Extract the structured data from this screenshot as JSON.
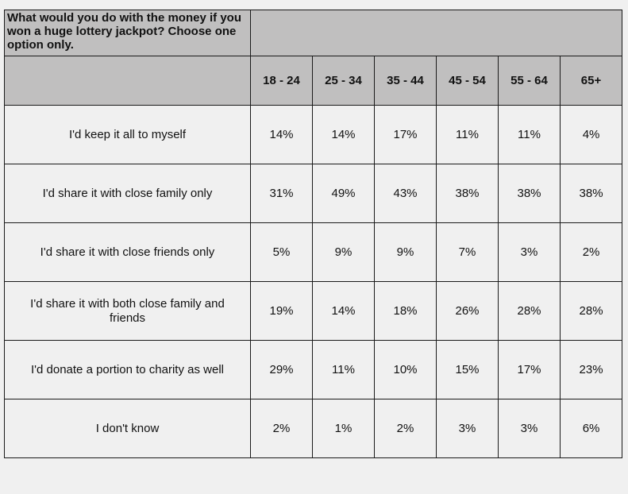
{
  "question": "What would you do with the money if you won a huge lottery jackpot? Choose one option only.",
  "chart_data": {
    "type": "table",
    "title": "What would you do with the money if you won a huge lottery jackpot? Choose one option only.",
    "columns": [
      "18 - 24",
      "25 - 34",
      "35 - 44",
      "45 - 54",
      "55 - 64",
      "65+"
    ],
    "rows": [
      {
        "label": "I'd keep it all to myself",
        "values": [
          "14%",
          "14%",
          "17%",
          "11%",
          "11%",
          "4%"
        ]
      },
      {
        "label": "I'd share it with close family only",
        "values": [
          "31%",
          "49%",
          "43%",
          "38%",
          "38%",
          "38%"
        ]
      },
      {
        "label": "I'd share it with close friends only",
        "values": [
          "5%",
          "9%",
          "9%",
          "7%",
          "3%",
          "2%"
        ]
      },
      {
        "label": "I'd share it with both close family and friends",
        "values": [
          "19%",
          "14%",
          "18%",
          "26%",
          "28%",
          "28%"
        ]
      },
      {
        "label": "I'd donate a portion to charity as well",
        "values": [
          "29%",
          "11%",
          "10%",
          "15%",
          "17%",
          "23%"
        ]
      },
      {
        "label": "I don't know",
        "values": [
          "2%",
          "1%",
          "2%",
          "3%",
          "3%",
          "6%"
        ]
      }
    ]
  },
  "colors": {
    "header_background": "#c0bfbf",
    "body_background": "#f0f0f0",
    "border": "#1a1a1a"
  }
}
